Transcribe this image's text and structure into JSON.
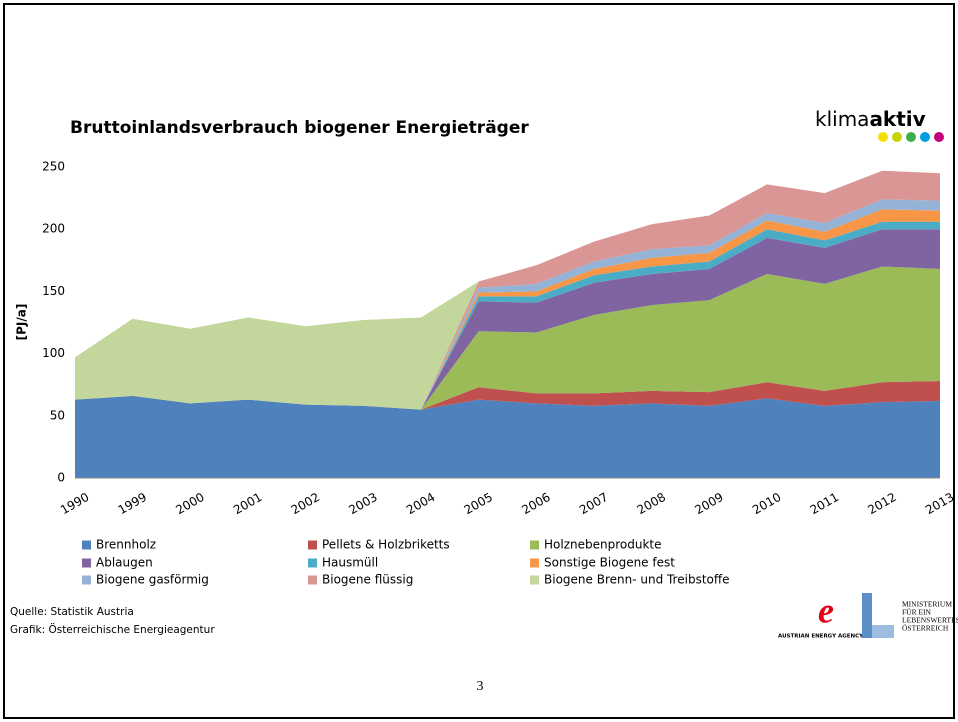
{
  "chart_data": {
    "type": "area",
    "title": "Bruttoinlandsverbrauch biogener Energieträger",
    "ylabel": "[PJ/a]",
    "categories": [
      "1990",
      "1999",
      "2000",
      "2001",
      "2002",
      "2003",
      "2004",
      "2005",
      "2006",
      "2007",
      "2008",
      "2009",
      "2010",
      "2011",
      "2012",
      "2013"
    ],
    "ylim": [
      0,
      250
    ],
    "yticks": [
      0,
      50,
      100,
      150,
      200,
      250
    ],
    "grid": false,
    "stacked": true,
    "series": [
      {
        "name": "Brennholz",
        "color": "#4f81bd",
        "values": [
          63,
          66,
          60,
          63,
          59,
          58,
          55,
          63,
          60,
          58,
          60,
          58,
          64,
          58,
          61,
          62
        ]
      },
      {
        "name": "Pellets & Holzbriketts",
        "color": "#c0504d",
        "values": [
          0,
          0,
          0,
          0,
          0,
          0,
          0,
          10,
          8,
          10,
          10,
          11,
          13,
          12,
          16,
          16
        ]
      },
      {
        "name": "Holznebenprodukte",
        "color": "#9bbb59",
        "values": [
          0,
          0,
          0,
          0,
          0,
          0,
          0,
          45,
          49,
          63,
          69,
          74,
          87,
          86,
          93,
          90
        ]
      },
      {
        "name": "Ablaugen",
        "color": "#8064a2",
        "values": [
          0,
          0,
          0,
          0,
          0,
          0,
          0,
          24,
          24,
          26,
          25,
          25,
          29,
          29,
          30,
          32
        ]
      },
      {
        "name": "Hausmüll",
        "color": "#4bacc6",
        "values": [
          0,
          0,
          0,
          0,
          0,
          0,
          0,
          4,
          5,
          6,
          6,
          6,
          7,
          6,
          6,
          6
        ]
      },
      {
        "name": "Sonstige Biogene fest",
        "color": "#f79646",
        "values": [
          0,
          0,
          0,
          0,
          0,
          0,
          0,
          3,
          4,
          5,
          7,
          7,
          7,
          7,
          10,
          9
        ]
      },
      {
        "name": "Biogene gasförmig",
        "color": "#95b3d7",
        "values": [
          0,
          0,
          0,
          0,
          0,
          0,
          0,
          4,
          6,
          6,
          7,
          6,
          6,
          7,
          8,
          8
        ]
      },
      {
        "name": "Biogene flüssig",
        "color": "#d99694",
        "values": [
          0,
          0,
          0,
          0,
          0,
          0,
          0,
          5,
          15,
          16,
          20,
          24,
          23,
          24,
          23,
          22
        ]
      },
      {
        "name": "Biogene Brenn- und Treibstoffe",
        "color": "#c3d69b",
        "values": [
          34,
          62,
          60,
          66,
          63,
          69,
          74,
          0,
          0,
          0,
          0,
          0,
          0,
          0,
          0,
          0
        ]
      }
    ]
  },
  "slide": {
    "logo": [
      "klima",
      "aktiv"
    ],
    "source": [
      "Quelle: Statistik Austria",
      "Grafik: Österreichische Energieagentur"
    ],
    "agency": "AUSTRIAN ENERGY AGENCY",
    "ministry": [
      "MINISTERIUM",
      "FÜR EIN",
      "LEBENSWERTES",
      "ÖSTERREICH"
    ],
    "page": "3"
  }
}
